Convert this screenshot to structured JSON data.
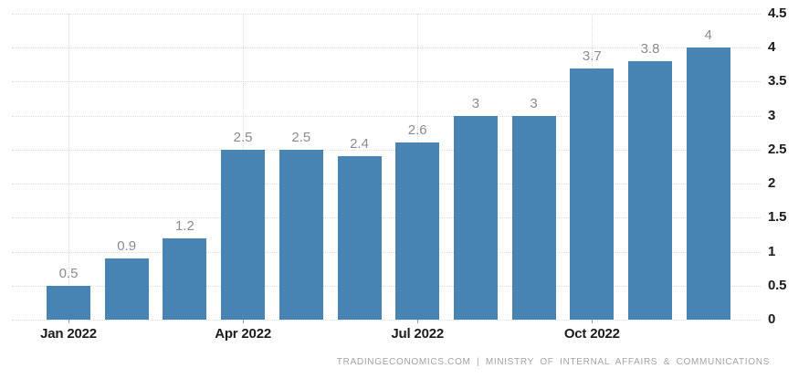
{
  "chart_data": {
    "type": "bar",
    "title": "",
    "xlabel": "",
    "ylabel": "",
    "values": [
      0.5,
      0.9,
      1.2,
      2.5,
      2.5,
      2.4,
      2.6,
      3,
      3,
      3.7,
      3.8,
      4
    ],
    "value_labels": [
      "0.5",
      "0.9",
      "1.2",
      "2.5",
      "2.5",
      "2.4",
      "2.6",
      "3",
      "3",
      "3.7",
      "3.8",
      "4"
    ],
    "x_ticks": [
      {
        "index": 0,
        "label": "Jan 2022"
      },
      {
        "index": 3,
        "label": "Apr 2022"
      },
      {
        "index": 6,
        "label": "Jul 2022"
      },
      {
        "index": 9,
        "label": "Oct 2022"
      }
    ],
    "y_ticks": [
      {
        "value": 0,
        "label": "0"
      },
      {
        "value": 0.5,
        "label": "0.5"
      },
      {
        "value": 1,
        "label": "1"
      },
      {
        "value": 1.5,
        "label": "1.5"
      },
      {
        "value": 2,
        "label": "2"
      },
      {
        "value": 2.5,
        "label": "2.5"
      },
      {
        "value": 3,
        "label": "3"
      },
      {
        "value": 3.5,
        "label": "3.5"
      },
      {
        "value": 4,
        "label": "4"
      },
      {
        "value": 4.5,
        "label": "4.5"
      }
    ],
    "ylim": [
      0,
      4.5
    ],
    "grid": true,
    "legend": false,
    "y_axis_position": "right",
    "colors": {
      "bar": "#4784b4",
      "value_label": "#8c8c8c",
      "axis_label": "#1c1c1c",
      "gridline": "#dcdcdc",
      "tick": "#9a9a9a",
      "footer": "#a3a3a3",
      "background": "#ffffff"
    }
  },
  "footer": {
    "text": "TRADINGECONOMICS.COM | MINISTRY OF INTERNAL AFFAIRS & COMMUNICATIONS"
  }
}
